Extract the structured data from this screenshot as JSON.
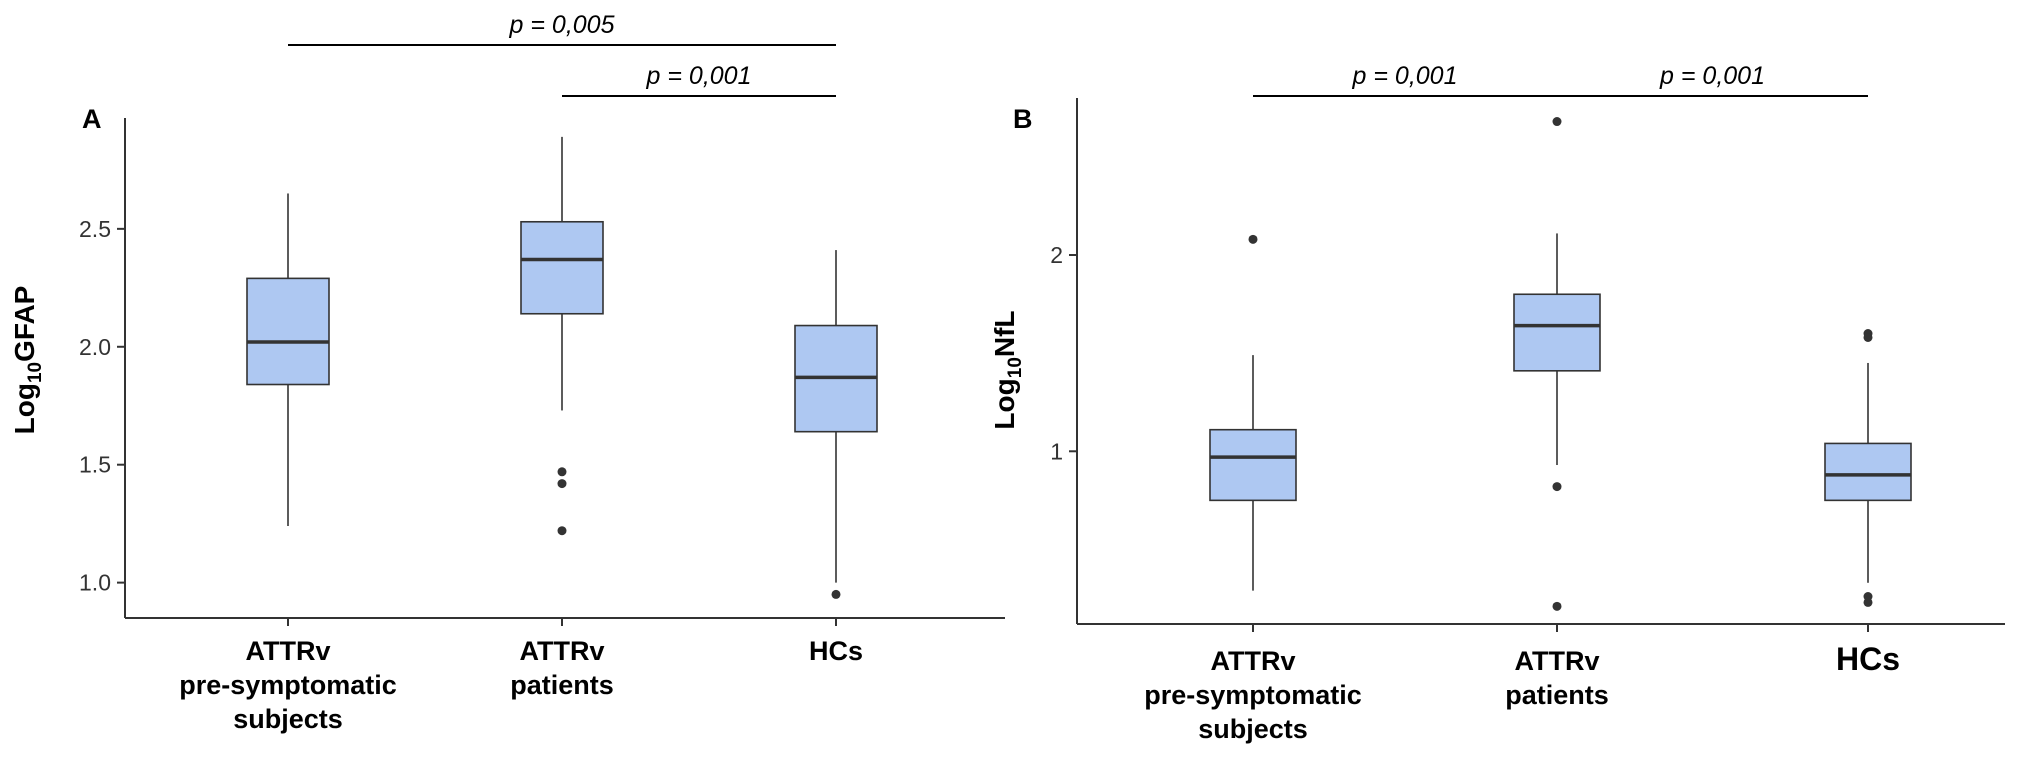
{
  "colors": {
    "box_fill": "#aec8f2",
    "box_stroke": "#333333",
    "axis": "#333333",
    "median": "#333333"
  },
  "chart_data": [
    {
      "type": "boxplot",
      "panel_label": "A",
      "ylabel_base": "Log",
      "ylabel_sub": "10",
      "ylabel_rest": "GFAP",
      "categories": [
        [
          "ATTRv",
          "pre-symptomatic",
          "subjects"
        ],
        [
          "ATTRv",
          "patients"
        ],
        [
          "HCs"
        ]
      ],
      "ylim": [
        0.85,
        2.97
      ],
      "yticks": [
        1.0,
        1.5,
        2.0,
        2.5
      ],
      "ytick_labels": [
        "1.0",
        "1.5",
        "2.0",
        "2.5"
      ],
      "boxes": [
        {
          "whisker_low": 1.24,
          "q1": 1.84,
          "median": 2.02,
          "q3": 2.29,
          "whisker_high": 2.65,
          "outliers": []
        },
        {
          "whisker_low": 1.73,
          "q1": 2.14,
          "median": 2.37,
          "q3": 2.53,
          "whisker_high": 2.89,
          "outliers": [
            1.47,
            1.42,
            1.22
          ]
        },
        {
          "whisker_low": 1.0,
          "q1": 1.64,
          "median": 1.87,
          "q3": 2.09,
          "whisker_high": 2.41,
          "outliers": [
            0.95
          ]
        }
      ],
      "comparisons": [
        {
          "from": 0,
          "to": 2,
          "label": "p = 0,005",
          "level": 2
        },
        {
          "from": 1,
          "to": 2,
          "label": "p = 0,001",
          "level": 1
        }
      ]
    },
    {
      "type": "boxplot",
      "panel_label": "B",
      "ylabel_base": "Log",
      "ylabel_sub": "10",
      "ylabel_rest": "NfL",
      "categories": [
        [
          "ATTRv",
          "pre-symptomatic",
          "subjects"
        ],
        [
          "ATTRv",
          "patients"
        ],
        [
          "HCs"
        ]
      ],
      "ylim": [
        0.12,
        2.8
      ],
      "yticks": [
        1,
        2
      ],
      "ytick_labels": [
        "1",
        "2"
      ],
      "boxes": [
        {
          "whisker_low": 0.29,
          "q1": 0.75,
          "median": 0.97,
          "q3": 1.11,
          "whisker_high": 1.49,
          "outliers": [
            2.08
          ]
        },
        {
          "whisker_low": 0.93,
          "q1": 1.41,
          "median": 1.64,
          "q3": 1.8,
          "whisker_high": 2.11,
          "outliers": [
            2.68,
            0.82,
            0.21
          ]
        },
        {
          "whisker_low": 0.33,
          "q1": 0.75,
          "median": 0.88,
          "q3": 1.04,
          "whisker_high": 1.45,
          "outliers": [
            1.6,
            1.58,
            0.26,
            0.23
          ]
        }
      ],
      "comparisons": [
        {
          "from": 0,
          "to": 1,
          "label": "p = 0,001",
          "level": 1
        },
        {
          "from": 1,
          "to": 2,
          "label": "p = 0,001",
          "level": 1
        }
      ]
    }
  ]
}
